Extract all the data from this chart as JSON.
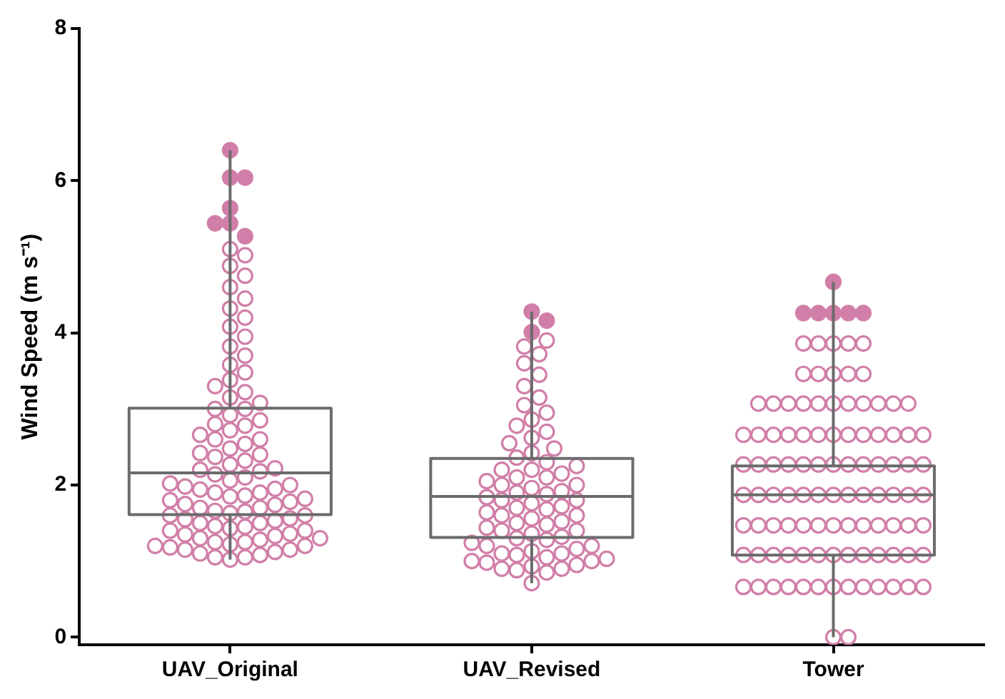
{
  "chart_data": {
    "type": "box",
    "ylabel": "Wind Speed (m s⁻¹)",
    "categories": [
      "UAV_Original",
      "UAV_Revised",
      "Tower"
    ],
    "ylim": [
      -0.1,
      8
    ],
    "yticks": [
      0,
      2,
      4,
      6,
      8
    ],
    "grid": false,
    "legend": false,
    "series": [
      {
        "type": "box",
        "color": "#6b6b6b",
        "boxes": [
          {
            "low": 1.02,
            "q1": 1.61,
            "median": 2.16,
            "q3": 3.01,
            "high": 6.4,
            "outliers": [
              6.4,
              6.04,
              6.04,
              5.64,
              5.44,
              5.44,
              5.27
            ]
          },
          {
            "low": 0.71,
            "q1": 1.31,
            "median": 1.85,
            "q3": 2.35,
            "high": 4.28,
            "outliers": [
              4.28,
              4.16,
              4.01
            ]
          },
          {
            "low": 0,
            "q1": 1.08,
            "median": 1.87,
            "q3": 2.25,
            "high": 4.67,
            "outliers": [
              4.67,
              4.26,
              4.26,
              4.26,
              4.26,
              4.26
            ]
          }
        ]
      },
      {
        "type": "scatter",
        "color": "#d17fa8",
        "marker": "circle",
        "x": [
          "UAV_Original",
          "UAV_Original",
          "UAV_Original",
          "UAV_Original",
          "UAV_Original",
          "UAV_Original",
          "UAV_Original",
          "UAV_Original",
          "UAV_Original",
          "UAV_Original",
          "UAV_Original",
          "UAV_Original",
          "UAV_Original",
          "UAV_Original",
          "UAV_Original",
          "UAV_Original",
          "UAV_Original",
          "UAV_Original",
          "UAV_Original",
          "UAV_Original",
          "UAV_Original",
          "UAV_Original",
          "UAV_Original",
          "UAV_Original",
          "UAV_Original",
          "UAV_Original",
          "UAV_Original",
          "UAV_Original",
          "UAV_Original",
          "UAV_Original",
          "UAV_Original",
          "UAV_Original",
          "UAV_Original",
          "UAV_Original",
          "UAV_Original",
          "UAV_Original",
          "UAV_Original",
          "UAV_Original",
          "UAV_Original",
          "UAV_Original",
          "UAV_Original",
          "UAV_Original",
          "UAV_Original",
          "UAV_Original",
          "UAV_Original",
          "UAV_Original",
          "UAV_Original",
          "UAV_Original",
          "UAV_Original",
          "UAV_Original",
          "UAV_Original",
          "UAV_Original",
          "UAV_Original",
          "UAV_Original",
          "UAV_Original",
          "UAV_Original",
          "UAV_Original",
          "UAV_Original",
          "UAV_Original",
          "UAV_Original",
          "UAV_Original",
          "UAV_Original",
          "UAV_Original",
          "UAV_Original",
          "UAV_Original",
          "UAV_Original",
          "UAV_Original",
          "UAV_Original",
          "UAV_Original",
          "UAV_Original",
          "UAV_Original",
          "UAV_Original",
          "UAV_Original",
          "UAV_Original",
          "UAV_Original",
          "UAV_Original",
          "UAV_Original",
          "UAV_Original",
          "UAV_Original",
          "UAV_Original",
          "UAV_Original",
          "UAV_Original",
          "UAV_Original",
          "UAV_Original",
          "UAV_Original",
          "UAV_Original",
          "UAV_Original",
          "UAV_Original",
          "UAV_Original",
          "UAV_Original",
          "UAV_Original",
          "UAV_Original",
          "UAV_Original",
          "UAV_Revised",
          "UAV_Revised",
          "UAV_Revised",
          "UAV_Revised",
          "UAV_Revised",
          "UAV_Revised",
          "UAV_Revised",
          "UAV_Revised",
          "UAV_Revised",
          "UAV_Revised",
          "UAV_Revised",
          "UAV_Revised",
          "UAV_Revised",
          "UAV_Revised",
          "UAV_Revised",
          "UAV_Revised",
          "UAV_Revised",
          "UAV_Revised",
          "UAV_Revised",
          "UAV_Revised",
          "UAV_Revised",
          "UAV_Revised",
          "UAV_Revised",
          "UAV_Revised",
          "UAV_Revised",
          "UAV_Revised",
          "UAV_Revised",
          "UAV_Revised",
          "UAV_Revised",
          "UAV_Revised",
          "UAV_Revised",
          "UAV_Revised",
          "UAV_Revised",
          "UAV_Revised",
          "UAV_Revised",
          "UAV_Revised",
          "UAV_Revised",
          "UAV_Revised",
          "UAV_Revised",
          "UAV_Revised",
          "UAV_Revised",
          "UAV_Revised",
          "UAV_Revised",
          "UAV_Revised",
          "UAV_Revised",
          "UAV_Revised",
          "UAV_Revised",
          "UAV_Revised",
          "UAV_Revised",
          "UAV_Revised",
          "UAV_Revised",
          "UAV_Revised",
          "UAV_Revised",
          "UAV_Revised",
          "UAV_Revised",
          "UAV_Revised",
          "UAV_Revised",
          "UAV_Revised",
          "UAV_Revised",
          "UAV_Revised",
          "UAV_Revised",
          "UAV_Revised",
          "UAV_Revised",
          "UAV_Revised",
          "UAV_Revised",
          "UAV_Revised",
          "UAV_Revised",
          "UAV_Revised",
          "UAV_Revised",
          "UAV_Revised",
          "UAV_Revised",
          "UAV_Revised",
          "Tower",
          "Tower",
          "Tower",
          "Tower",
          "Tower",
          "Tower",
          "Tower",
          "Tower",
          "Tower",
          "Tower",
          "Tower",
          "Tower",
          "Tower",
          "Tower",
          "Tower",
          "Tower",
          "Tower",
          "Tower",
          "Tower",
          "Tower",
          "Tower",
          "Tower",
          "Tower",
          "Tower",
          "Tower",
          "Tower",
          "Tower",
          "Tower",
          "Tower",
          "Tower",
          "Tower",
          "Tower",
          "Tower",
          "Tower",
          "Tower",
          "Tower",
          "Tower",
          "Tower",
          "Tower",
          "Tower",
          "Tower",
          "Tower",
          "Tower",
          "Tower",
          "Tower",
          "Tower",
          "Tower",
          "Tower",
          "Tower",
          "Tower",
          "Tower",
          "Tower",
          "Tower",
          "Tower",
          "Tower",
          "Tower",
          "Tower",
          "Tower",
          "Tower",
          "Tower",
          "Tower",
          "Tower",
          "Tower",
          "Tower",
          "Tower",
          "Tower",
          "Tower",
          "Tower",
          "Tower",
          "Tower",
          "Tower",
          "Tower",
          "Tower",
          "Tower",
          "Tower",
          "Tower",
          "Tower",
          "Tower",
          "Tower",
          "Tower",
          "Tower",
          "Tower",
          "Tower",
          "Tower",
          "Tower",
          "Tower",
          "Tower",
          "Tower",
          "Tower",
          "Tower",
          "Tower",
          "Tower",
          "Tower",
          "Tower",
          "Tower",
          "Tower",
          "Tower",
          "Tower",
          "Tower",
          "Tower",
          "Tower"
        ],
        "values": [
          1.02,
          1.05,
          1.08,
          1.1,
          1.12,
          1.15,
          1.18,
          1.2,
          1.22,
          1.25,
          1.28,
          1.3,
          1.33,
          1.36,
          1.4,
          1.43,
          1.46,
          1.5,
          1.53,
          1.56,
          1.6,
          1.63,
          1.66,
          1.7,
          1.74,
          1.78,
          1.82,
          1.86,
          1.9,
          1.94,
          1.98,
          2.02,
          2.06,
          2.1,
          2.14,
          2.18,
          2.22,
          2.27,
          2.32,
          2.37,
          2.42,
          2.48,
          2.54,
          2.6,
          2.66,
          2.72,
          2.78,
          2.85,
          2.92,
          3.0,
          3.08,
          3.15,
          3.22,
          3.3,
          3.38,
          3.48,
          3.58,
          3.7,
          3.82,
          3.95,
          4.08,
          4.2,
          4.32,
          4.45,
          4.6,
          4.75,
          4.88,
          5.02,
          5.1,
          1.05,
          1.15,
          1.25,
          1.35,
          1.45,
          1.55,
          1.65,
          1.75,
          1.85,
          1.95,
          1.2,
          1.4,
          1.6,
          1.8,
          2.0,
          2.2,
          2.4,
          2.6,
          2.8,
          3.0,
          1.3,
          1.5,
          1.7,
          1.9,
          0.71,
          0.85,
          0.88,
          0.9,
          0.93,
          0.95,
          0.98,
          1.0,
          1.03,
          1.05,
          1.08,
          1.1,
          1.13,
          1.16,
          1.2,
          1.24,
          1.28,
          1.32,
          1.36,
          1.4,
          1.44,
          1.48,
          1.52,
          1.56,
          1.6,
          1.64,
          1.68,
          1.72,
          1.76,
          1.8,
          1.84,
          1.88,
          1.92,
          1.96,
          2.0,
          2.05,
          2.1,
          2.15,
          2.2,
          2.25,
          2.3,
          2.36,
          2.42,
          2.48,
          2.55,
          2.62,
          2.7,
          2.78,
          2.86,
          2.95,
          3.05,
          3.15,
          3.3,
          3.45,
          3.6,
          3.72,
          3.82,
          3.9,
          0.9,
          1.0,
          1.1,
          1.2,
          1.3,
          1.4,
          1.5,
          1.6,
          1.7,
          1.8,
          1.9,
          2.0,
          2.1,
          2.2,
          3.86,
          3.86,
          3.86,
          3.86,
          3.86,
          3.46,
          3.46,
          3.46,
          3.46,
          3.46,
          3.07,
          3.07,
          3.07,
          3.07,
          3.07,
          3.07,
          3.07,
          3.07,
          3.07,
          3.07,
          3.07,
          2.66,
          2.66,
          2.66,
          2.66,
          2.66,
          2.66,
          2.66,
          2.66,
          2.66,
          2.66,
          2.66,
          2.66,
          2.66,
          2.27,
          2.27,
          2.27,
          2.27,
          2.27,
          2.27,
          2.27,
          2.27,
          2.27,
          2.27,
          2.27,
          2.27,
          2.27,
          1.87,
          1.87,
          1.87,
          1.87,
          1.87,
          1.87,
          1.87,
          1.87,
          1.87,
          1.87,
          1.87,
          1.87,
          1.87,
          1.47,
          1.47,
          1.47,
          1.47,
          1.47,
          1.47,
          1.47,
          1.47,
          1.47,
          1.47,
          1.47,
          1.47,
          1.47,
          1.08,
          1.08,
          1.08,
          1.08,
          1.08,
          1.08,
          1.08,
          1.08,
          1.08,
          1.08,
          1.08,
          1.08,
          1.08,
          0.66,
          0.66,
          0.66,
          0.66,
          0.66,
          0.66,
          0.66,
          0.66,
          0.66,
          0.66,
          0.66,
          0.66,
          0.66,
          0,
          0
        ]
      }
    ]
  }
}
